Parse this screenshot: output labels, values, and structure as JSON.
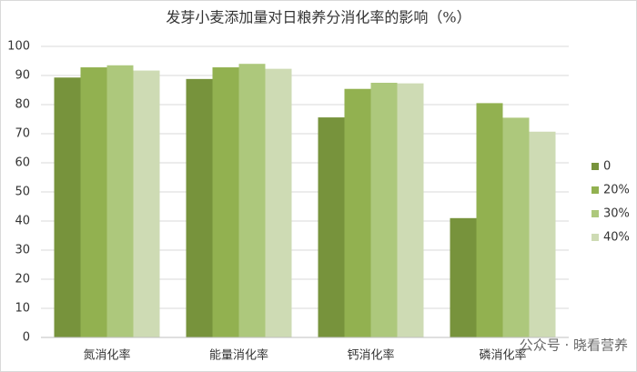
{
  "chart_data": {
    "type": "bar",
    "title": "发芽小麦添加量对日粮养分消化率的影响（%）",
    "categories": [
      "氮消化率",
      "能量消化率",
      "钙消化率",
      "磷消化率"
    ],
    "series": [
      {
        "name": "0",
        "color": "#77933c",
        "values": [
          89.3,
          88.8,
          75.6,
          41.0
        ]
      },
      {
        "name": "20%",
        "color": "#92b150",
        "values": [
          92.8,
          92.8,
          85.4,
          80.5
        ]
      },
      {
        "name": "30%",
        "color": "#adc87c",
        "values": [
          93.5,
          94.0,
          87.5,
          75.5
        ]
      },
      {
        "name": "40%",
        "color": "#cedbb4",
        "values": [
          91.7,
          92.3,
          87.3,
          70.7
        ]
      }
    ],
    "ylim": [
      0,
      100
    ],
    "yticks": [
      0,
      10,
      20,
      30,
      40,
      50,
      60,
      70,
      80,
      90,
      100
    ],
    "grid": true,
    "legend": "right",
    "watermark": "公众号 · 晓看营养"
  }
}
